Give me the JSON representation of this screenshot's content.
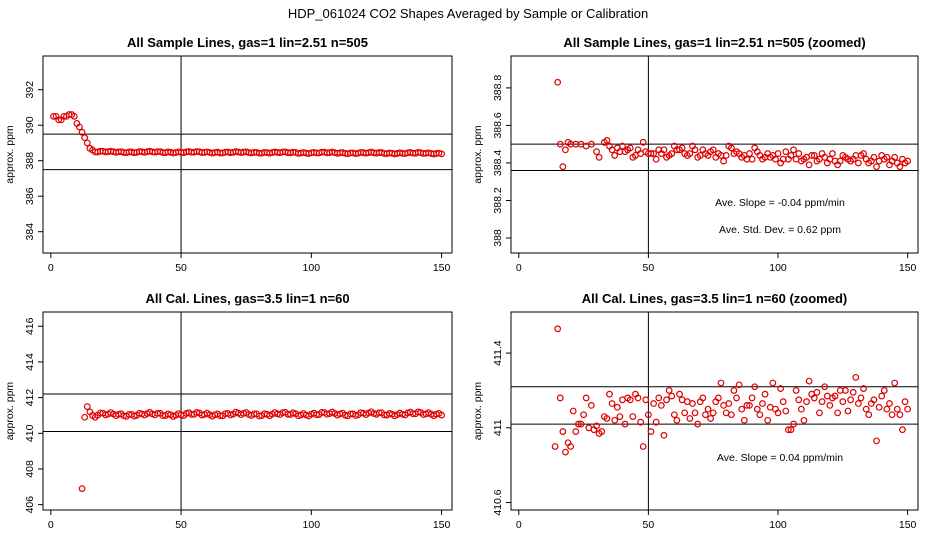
{
  "figure_title": "HDP_061024  CO2 Shapes Averaged by Sample or Calibration",
  "chart_data": [
    {
      "type": "scatter",
      "title": "All Sample Lines, gas=1 lin=2.51 n=505",
      "xlabel": "",
      "ylabel": "approx. ppm",
      "xlim": [
        -3,
        154
      ],
      "ylim": [
        382.8,
        393.9
      ],
      "xticks": [
        0,
        50,
        100,
        150
      ],
      "yticks": [
        384,
        386,
        388,
        390,
        392
      ],
      "vlines": [
        50
      ],
      "hlines": [
        389.5,
        387.5
      ],
      "annotations": [],
      "color": "#e00000",
      "segments": [
        {
          "from": 1,
          "to": 5,
          "points": [
            [
              1,
              390.5
            ],
            [
              2,
              390.5
            ],
            [
              3,
              390.3
            ],
            [
              4,
              390.3
            ],
            [
              5,
              390.5
            ]
          ]
        },
        {
          "from": 6,
          "to": 9,
          "points": [
            [
              6,
              390.5
            ],
            [
              7,
              390.6
            ],
            [
              8,
              390.6
            ],
            [
              9,
              390.5
            ]
          ]
        },
        {
          "from": 10,
          "to": 17,
          "points": [
            [
              10,
              390.1
            ],
            [
              11,
              389.9
            ],
            [
              12,
              389.6
            ],
            [
              13,
              389.3
            ],
            [
              14,
              389.0
            ],
            [
              15,
              388.7
            ],
            [
              16,
              388.6
            ],
            [
              17,
              388.5
            ]
          ]
        },
        {
          "from": 18,
          "to": 150,
          "y0": 388.5,
          "yend": 388.42,
          "amp": 0.05
        }
      ]
    },
    {
      "type": "scatter",
      "title": "All Sample Lines, gas=1 lin=2.51 n=505 (zoomed)",
      "xlabel": "",
      "ylabel": "approx. ppm",
      "xlim": [
        -3,
        154
      ],
      "ylim": [
        387.92,
        388.97
      ],
      "xticks": [
        0,
        50,
        100,
        150
      ],
      "yticks": [
        388.0,
        388.2,
        388.4,
        388.6,
        388.8
      ],
      "vlines": [
        50
      ],
      "hlines": [
        388.5,
        388.36
      ],
      "annotations": [
        "Ave. Slope =  -0.04  ppm/min",
        "Ave. Std. Dev. =  0.62  ppm"
      ],
      "color": "#e00000",
      "points": [
        [
          15,
          388.83
        ],
        [
          16,
          388.5
        ],
        [
          17,
          388.38
        ],
        [
          18,
          388.47
        ],
        [
          19,
          388.51
        ],
        [
          20,
          388.5
        ],
        [
          22,
          388.5
        ],
        [
          24,
          388.5
        ],
        [
          26,
          388.49
        ],
        [
          28,
          388.5
        ],
        [
          30,
          388.46
        ],
        [
          31,
          388.43
        ],
        [
          33,
          388.51
        ],
        [
          34,
          388.52
        ],
        [
          35,
          388.49
        ],
        [
          36,
          388.47
        ],
        [
          37,
          388.44
        ],
        [
          38,
          388.48
        ],
        [
          39,
          388.46
        ],
        [
          40,
          388.49
        ],
        [
          41,
          388.46
        ],
        [
          42,
          388.47
        ],
        [
          43,
          388.48
        ],
        [
          44,
          388.43
        ],
        [
          45,
          388.44
        ],
        [
          46,
          388.47
        ],
        [
          47,
          388.45
        ],
        [
          48,
          388.51
        ],
        [
          49,
          388.46
        ],
        [
          50,
          388.45
        ],
        [
          51,
          388.45
        ],
        [
          52,
          388.45
        ],
        [
          53,
          388.42
        ],
        [
          54,
          388.47
        ],
        [
          55,
          388.45
        ],
        [
          56,
          388.47
        ],
        [
          57,
          388.43
        ],
        [
          58,
          388.44
        ],
        [
          59,
          388.45
        ],
        [
          60,
          388.49
        ],
        [
          61,
          388.47
        ],
        [
          62,
          388.47
        ],
        [
          63,
          388.48
        ],
        [
          64,
          388.45
        ],
        [
          65,
          388.44
        ],
        [
          66,
          388.45
        ],
        [
          67,
          388.49
        ],
        [
          68,
          388.47
        ],
        [
          69,
          388.43
        ],
        [
          70,
          388.44
        ],
        [
          71,
          388.47
        ],
        [
          72,
          388.45
        ],
        [
          73,
          388.44
        ],
        [
          74,
          388.46
        ],
        [
          75,
          388.47
        ],
        [
          76,
          388.43
        ],
        [
          77,
          388.45
        ],
        [
          78,
          388.44
        ],
        [
          79,
          388.41
        ],
        [
          80,
          388.44
        ],
        [
          81,
          388.49
        ],
        [
          82,
          388.48
        ],
        [
          83,
          388.45
        ],
        [
          84,
          388.46
        ],
        [
          85,
          388.45
        ],
        [
          86,
          388.43
        ],
        [
          87,
          388.44
        ],
        [
          88,
          388.42
        ],
        [
          89,
          388.45
        ],
        [
          90,
          388.42
        ],
        [
          91,
          388.48
        ],
        [
          92,
          388.46
        ],
        [
          93,
          388.44
        ],
        [
          94,
          388.42
        ],
        [
          95,
          388.43
        ],
        [
          96,
          388.45
        ],
        [
          97,
          388.43
        ],
        [
          98,
          388.44
        ],
        [
          99,
          388.42
        ],
        [
          100,
          388.45
        ],
        [
          101,
          388.4
        ],
        [
          102,
          388.42
        ],
        [
          103,
          388.46
        ],
        [
          104,
          388.42
        ],
        [
          105,
          388.44
        ],
        [
          106,
          388.47
        ],
        [
          107,
          388.42
        ],
        [
          108,
          388.45
        ],
        [
          109,
          388.41
        ],
        [
          110,
          388.42
        ],
        [
          111,
          388.43
        ],
        [
          112,
          388.39
        ],
        [
          113,
          388.44
        ],
        [
          114,
          388.44
        ],
        [
          115,
          388.41
        ],
        [
          116,
          388.42
        ],
        [
          117,
          388.45
        ],
        [
          118,
          388.43
        ],
        [
          119,
          388.4
        ],
        [
          120,
          388.42
        ],
        [
          121,
          388.45
        ],
        [
          122,
          388.41
        ],
        [
          123,
          388.39
        ],
        [
          124,
          388.41
        ],
        [
          125,
          388.44
        ],
        [
          126,
          388.43
        ],
        [
          127,
          388.42
        ],
        [
          128,
          388.41
        ],
        [
          129,
          388.42
        ],
        [
          130,
          388.44
        ],
        [
          131,
          388.4
        ],
        [
          132,
          388.44
        ],
        [
          133,
          388.45
        ],
        [
          134,
          388.42
        ],
        [
          135,
          388.4
        ],
        [
          136,
          388.41
        ],
        [
          137,
          388.43
        ],
        [
          138,
          388.38
        ],
        [
          139,
          388.41
        ],
        [
          140,
          388.44
        ],
        [
          141,
          388.42
        ],
        [
          142,
          388.43
        ],
        [
          143,
          388.39
        ],
        [
          144,
          388.41
        ],
        [
          145,
          388.43
        ],
        [
          146,
          388.4
        ],
        [
          147,
          388.38
        ],
        [
          148,
          388.42
        ],
        [
          149,
          388.4
        ],
        [
          150,
          388.41
        ]
      ]
    },
    {
      "type": "scatter",
      "title": "All Cal. Lines, gas=3.5 lin=1 n=60",
      "xlabel": "",
      "ylabel": "approx. ppm",
      "xlim": [
        -3,
        154
      ],
      "ylim": [
        405.7,
        416.8
      ],
      "xticks": [
        0,
        50,
        100,
        150
      ],
      "yticks": [
        406,
        408,
        410,
        412,
        414,
        416
      ],
      "vlines": [
        50
      ],
      "hlines": [
        412.2,
        410.1
      ],
      "annotations": [],
      "color": "#e00000",
      "segments": [
        {
          "from": 12,
          "to": 12,
          "points": [
            [
              12,
              406.9
            ]
          ]
        },
        {
          "from": 13,
          "to": 17,
          "points": [
            [
              13,
              410.9
            ],
            [
              14,
              411.5
            ],
            [
              15,
              411.2
            ],
            [
              16,
              411.0
            ],
            [
              17,
              410.9
            ]
          ]
        },
        {
          "from": 18,
          "to": 150,
          "y0": 411.05,
          "yend": 411.1,
          "amp": 0.12
        }
      ]
    },
    {
      "type": "scatter",
      "title": "All Cal. Lines, gas=3.5 lin=1 n=60 (zoomed)",
      "xlabel": "",
      "ylabel": "approx. ppm",
      "xlim": [
        -3,
        154
      ],
      "ylim": [
        410.56,
        411.62
      ],
      "xticks": [
        0,
        50,
        100,
        150
      ],
      "yticks": [
        410.6,
        411.0,
        411.4
      ],
      "vlines": [
        50
      ],
      "hlines": [
        411.22,
        411.02
      ],
      "annotations": [
        "Ave. Slope =  0.04  ppm/min"
      ],
      "color": "#e00000",
      "points": [
        [
          14,
          410.9
        ],
        [
          15,
          411.53
        ],
        [
          16,
          411.16
        ],
        [
          17,
          410.98
        ],
        [
          18,
          410.87
        ],
        [
          19,
          410.92
        ],
        [
          20,
          410.9
        ],
        [
          21,
          411.09
        ],
        [
          22,
          410.98
        ],
        [
          23,
          411.02
        ],
        [
          24,
          411.02
        ],
        [
          25,
          411.07
        ],
        [
          26,
          411.16
        ],
        [
          27,
          411.0
        ],
        [
          28,
          411.12
        ],
        [
          29,
          410.99
        ],
        [
          30,
          411.01
        ],
        [
          31,
          410.97
        ],
        [
          32,
          410.98
        ],
        [
          33,
          411.06
        ],
        [
          34,
          411.05
        ],
        [
          35,
          411.18
        ],
        [
          36,
          411.13
        ],
        [
          37,
          411.04
        ],
        [
          38,
          411.11
        ],
        [
          39,
          411.06
        ],
        [
          40,
          411.15
        ],
        [
          41,
          411.02
        ],
        [
          42,
          411.16
        ],
        [
          43,
          411.15
        ],
        [
          44,
          411.06
        ],
        [
          45,
          411.18
        ],
        [
          46,
          411.16
        ],
        [
          47,
          411.03
        ],
        [
          48,
          410.9
        ],
        [
          49,
          411.15
        ],
        [
          50,
          411.07
        ],
        [
          51,
          410.98
        ],
        [
          52,
          411.13
        ],
        [
          53,
          411.03
        ],
        [
          54,
          411.16
        ],
        [
          55,
          411.12
        ],
        [
          56,
          410.96
        ],
        [
          57,
          411.15
        ],
        [
          58,
          411.2
        ],
        [
          59,
          411.17
        ],
        [
          60,
          411.07
        ],
        [
          61,
          411.04
        ],
        [
          62,
          411.18
        ],
        [
          63,
          411.15
        ],
        [
          64,
          411.08
        ],
        [
          65,
          411.14
        ],
        [
          66,
          411.05
        ],
        [
          67,
          411.13
        ],
        [
          68,
          411.08
        ],
        [
          69,
          411.02
        ],
        [
          70,
          411.14
        ],
        [
          71,
          411.16
        ],
        [
          72,
          411.07
        ],
        [
          73,
          411.1
        ],
        [
          74,
          411.05
        ],
        [
          75,
          411.08
        ],
        [
          76,
          411.14
        ],
        [
          77,
          411.16
        ],
        [
          78,
          411.24
        ],
        [
          79,
          411.12
        ],
        [
          80,
          411.08
        ],
        [
          81,
          411.13
        ],
        [
          82,
          411.07
        ],
        [
          83,
          411.2
        ],
        [
          84,
          411.16
        ],
        [
          85,
          411.23
        ],
        [
          86,
          411.1
        ],
        [
          87,
          411.04
        ],
        [
          88,
          411.12
        ],
        [
          89,
          411.12
        ],
        [
          90,
          411.16
        ],
        [
          91,
          411.22
        ],
        [
          92,
          411.1
        ],
        [
          93,
          411.07
        ],
        [
          94,
          411.13
        ],
        [
          95,
          411.18
        ],
        [
          96,
          411.04
        ],
        [
          97,
          411.11
        ],
        [
          98,
          411.24
        ],
        [
          99,
          411.1
        ],
        [
          100,
          411.08
        ],
        [
          101,
          411.21
        ],
        [
          102,
          411.14
        ],
        [
          103,
          411.09
        ],
        [
          104,
          410.99
        ],
        [
          105,
          410.99
        ],
        [
          106,
          411.02
        ],
        [
          107,
          411.2
        ],
        [
          108,
          411.15
        ],
        [
          109,
          411.1
        ],
        [
          110,
          411.04
        ],
        [
          111,
          411.14
        ],
        [
          112,
          411.25
        ],
        [
          113,
          411.18
        ],
        [
          114,
          411.16
        ],
        [
          115,
          411.19
        ],
        [
          116,
          411.08
        ],
        [
          117,
          411.14
        ],
        [
          118,
          411.22
        ],
        [
          119,
          411.17
        ],
        [
          120,
          411.12
        ],
        [
          121,
          411.16
        ],
        [
          122,
          411.17
        ],
        [
          123,
          411.08
        ],
        [
          124,
          411.2
        ],
        [
          125,
          411.14
        ],
        [
          126,
          411.2
        ],
        [
          127,
          411.09
        ],
        [
          128,
          411.15
        ],
        [
          129,
          411.19
        ],
        [
          130,
          411.27
        ],
        [
          131,
          411.13
        ],
        [
          132,
          411.16
        ],
        [
          133,
          411.21
        ],
        [
          134,
          411.1
        ],
        [
          135,
          411.07
        ],
        [
          136,
          411.13
        ],
        [
          137,
          411.15
        ],
        [
          138,
          410.93
        ],
        [
          139,
          411.11
        ],
        [
          140,
          411.17
        ],
        [
          141,
          411.2
        ],
        [
          142,
          411.1
        ],
        [
          143,
          411.13
        ],
        [
          144,
          411.07
        ],
        [
          145,
          411.24
        ],
        [
          146,
          411.1
        ],
        [
          147,
          411.07
        ],
        [
          148,
          410.99
        ],
        [
          149,
          411.14
        ],
        [
          150,
          411.1
        ]
      ]
    }
  ]
}
